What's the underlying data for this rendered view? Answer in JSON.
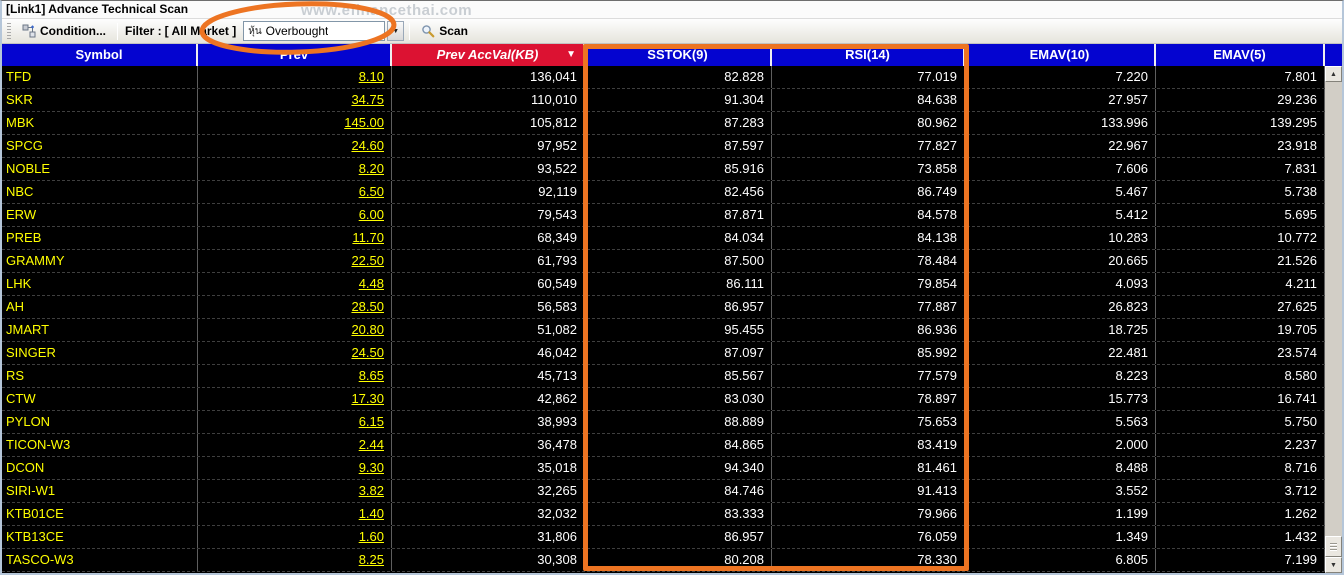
{
  "window": {
    "title": "[Link1] Advance Technical Scan",
    "watermark": "www.efinancethai.com"
  },
  "toolbar": {
    "condition_label": "Condition...",
    "filter_label": "Filter :",
    "filter_value": "[ All Market ]",
    "scan_combobox": {
      "prefix": "หุ้น",
      "value": "Overbought"
    },
    "scan_label": "Scan"
  },
  "icons": {
    "dropdown": "▼",
    "sort_desc": "▼",
    "scroll_up": "▲",
    "scroll_down": "▼",
    "condition": "condition-node-icon",
    "scan": "magnifier-icon"
  },
  "colors": {
    "header_blue": "#0404d0",
    "header_sorted_red": "#dc1232",
    "symbol_yellow": "#ffff00",
    "annotation_orange": "#ed7422"
  },
  "table": {
    "columns": [
      {
        "key": "symbol",
        "label": "Symbol"
      },
      {
        "key": "prev",
        "label": "Prev"
      },
      {
        "key": "acc_val",
        "label": "Prev AccVal(KB)",
        "sorted": "desc",
        "italic": true
      },
      {
        "key": "sstok",
        "label": "SSTOK(9)"
      },
      {
        "key": "rsi",
        "label": "RSI(14)"
      },
      {
        "key": "emav10",
        "label": "EMAV(10)"
      },
      {
        "key": "emav5",
        "label": "EMAV(5)"
      }
    ],
    "rows": [
      {
        "symbol": "TFD",
        "prev": "8.10",
        "acc_val": "136,041",
        "sstok": "82.828",
        "rsi": "77.019",
        "emav10": "7.220",
        "emav5": "7.801"
      },
      {
        "symbol": "SKR",
        "prev": "34.75",
        "acc_val": "110,010",
        "sstok": "91.304",
        "rsi": "84.638",
        "emav10": "27.957",
        "emav5": "29.236"
      },
      {
        "symbol": "MBK",
        "prev": "145.00",
        "acc_val": "105,812",
        "sstok": "87.283",
        "rsi": "80.962",
        "emav10": "133.996",
        "emav5": "139.295"
      },
      {
        "symbol": "SPCG",
        "prev": "24.60",
        "acc_val": "97,952",
        "sstok": "87.597",
        "rsi": "77.827",
        "emav10": "22.967",
        "emav5": "23.918"
      },
      {
        "symbol": "NOBLE",
        "prev": "8.20",
        "acc_val": "93,522",
        "sstok": "85.916",
        "rsi": "73.858",
        "emav10": "7.606",
        "emav5": "7.831"
      },
      {
        "symbol": "NBC",
        "prev": "6.50",
        "acc_val": "92,119",
        "sstok": "82.456",
        "rsi": "86.749",
        "emav10": "5.467",
        "emav5": "5.738"
      },
      {
        "symbol": "ERW",
        "prev": "6.00",
        "acc_val": "79,543",
        "sstok": "87.871",
        "rsi": "84.578",
        "emav10": "5.412",
        "emav5": "5.695"
      },
      {
        "symbol": "PREB",
        "prev": "11.70",
        "acc_val": "68,349",
        "sstok": "84.034",
        "rsi": "84.138",
        "emav10": "10.283",
        "emav5": "10.772"
      },
      {
        "symbol": "GRAMMY",
        "prev": "22.50",
        "acc_val": "61,793",
        "sstok": "87.500",
        "rsi": "78.484",
        "emav10": "20.665",
        "emav5": "21.526"
      },
      {
        "symbol": "LHK",
        "prev": "4.48",
        "acc_val": "60,549",
        "sstok": "86.111",
        "rsi": "79.854",
        "emav10": "4.093",
        "emav5": "4.211"
      },
      {
        "symbol": "AH",
        "prev": "28.50",
        "acc_val": "56,583",
        "sstok": "86.957",
        "rsi": "77.887",
        "emav10": "26.823",
        "emav5": "27.625"
      },
      {
        "symbol": "JMART",
        "prev": "20.80",
        "acc_val": "51,082",
        "sstok": "95.455",
        "rsi": "86.936",
        "emav10": "18.725",
        "emav5": "19.705"
      },
      {
        "symbol": "SINGER",
        "prev": "24.50",
        "acc_val": "46,042",
        "sstok": "87.097",
        "rsi": "85.992",
        "emav10": "22.481",
        "emav5": "23.574"
      },
      {
        "symbol": "RS",
        "prev": "8.65",
        "acc_val": "45,713",
        "sstok": "85.567",
        "rsi": "77.579",
        "emav10": "8.223",
        "emav5": "8.580"
      },
      {
        "symbol": "CTW",
        "prev": "17.30",
        "acc_val": "42,862",
        "sstok": "83.030",
        "rsi": "78.897",
        "emav10": "15.773",
        "emav5": "16.741"
      },
      {
        "symbol": "PYLON",
        "prev": "6.15",
        "acc_val": "38,993",
        "sstok": "88.889",
        "rsi": "75.653",
        "emav10": "5.563",
        "emav5": "5.750"
      },
      {
        "symbol": "TICON-W3",
        "prev": "2.44",
        "acc_val": "36,478",
        "sstok": "84.865",
        "rsi": "83.419",
        "emav10": "2.000",
        "emav5": "2.237"
      },
      {
        "symbol": "DCON",
        "prev": "9.30",
        "acc_val": "35,018",
        "sstok": "94.340",
        "rsi": "81.461",
        "emav10": "8.488",
        "emav5": "8.716"
      },
      {
        "symbol": "SIRI-W1",
        "prev": "3.82",
        "acc_val": "32,265",
        "sstok": "84.746",
        "rsi": "91.413",
        "emav10": "3.552",
        "emav5": "3.712"
      },
      {
        "symbol": "KTB01CE",
        "prev": "1.40",
        "acc_val": "32,032",
        "sstok": "83.333",
        "rsi": "79.966",
        "emav10": "1.199",
        "emav5": "1.262"
      },
      {
        "symbol": "KTB13CE",
        "prev": "1.60",
        "acc_val": "31,806",
        "sstok": "86.957",
        "rsi": "76.059",
        "emav10": "1.349",
        "emav5": "1.432"
      },
      {
        "symbol": "TASCO-W3",
        "prev": "8.25",
        "acc_val": "30,308",
        "sstok": "80.208",
        "rsi": "78.330",
        "emav10": "6.805",
        "emav5": "7.199"
      }
    ]
  }
}
